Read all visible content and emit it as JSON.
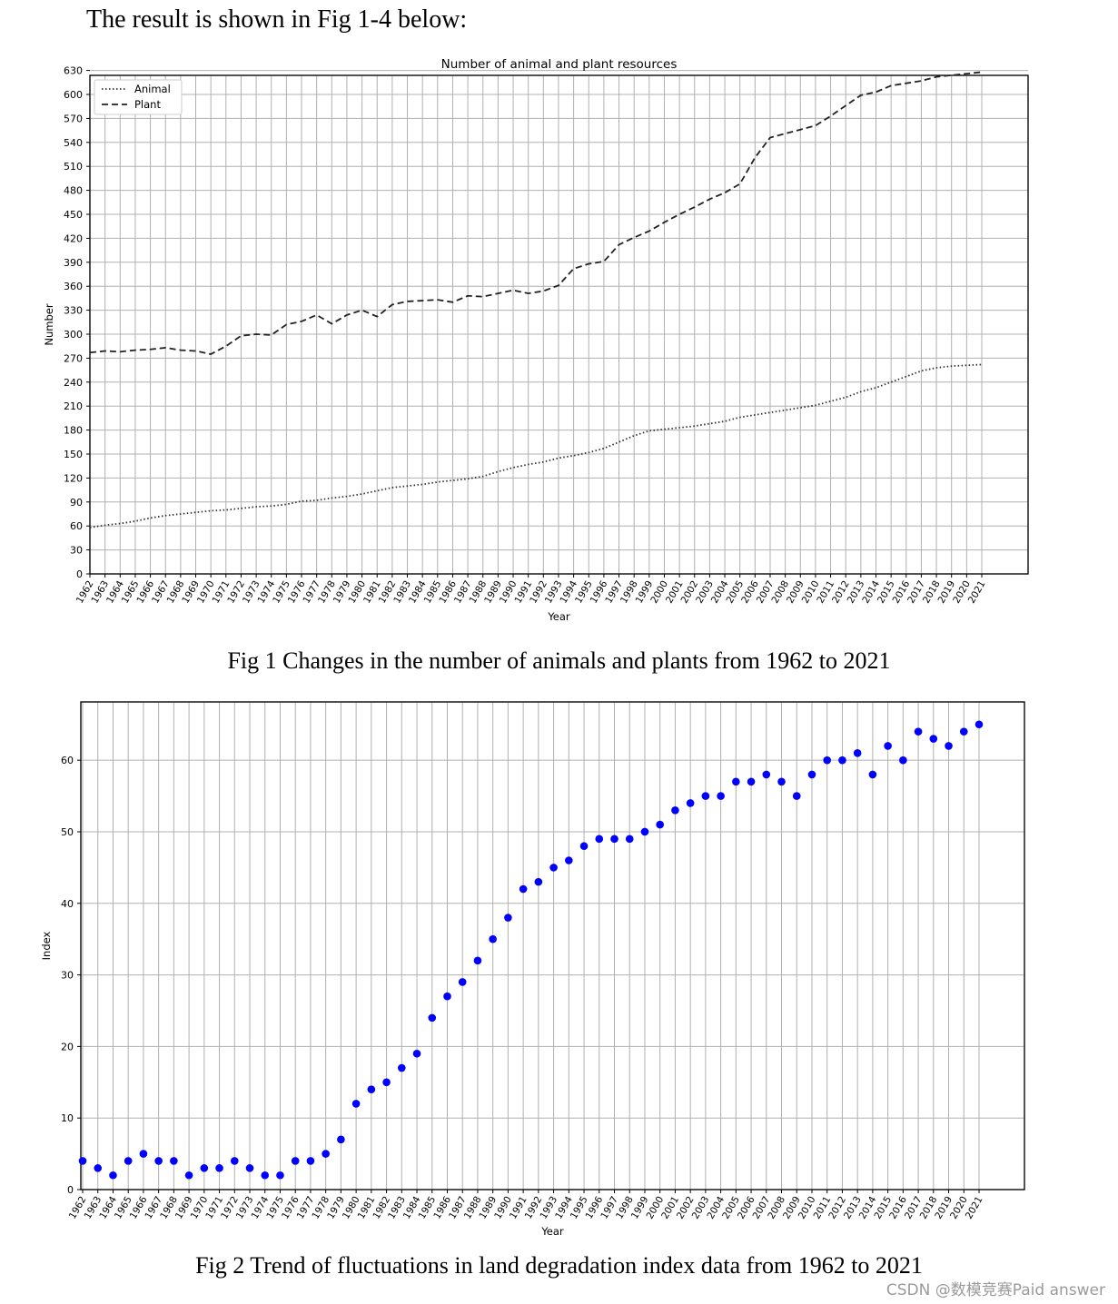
{
  "intro_text": "The result is shown in Fig 1-4 below:",
  "figure1": {
    "caption": "Fig 1 Changes in the number of animals and plants from 1962 to 2021",
    "chart_data": {
      "type": "line",
      "title": "Number of animal and plant resources",
      "xlabel": "Year",
      "ylabel": "Number",
      "ylim": [
        0,
        650
      ],
      "yticks": [
        0,
        30,
        60,
        90,
        120,
        150,
        180,
        210,
        240,
        270,
        300,
        330,
        360,
        390,
        420,
        450,
        480,
        510,
        540,
        570,
        600,
        630
      ],
      "grid": true,
      "legend": "top-left",
      "categories": [
        "1962",
        "1963",
        "1964",
        "1965",
        "1966",
        "1967",
        "1968",
        "1969",
        "1970",
        "1971",
        "1972",
        "1973",
        "1974",
        "1975",
        "1976",
        "1977",
        "1978",
        "1979",
        "1980",
        "1981",
        "1982",
        "1983",
        "1984",
        "1985",
        "1986",
        "1987",
        "1988",
        "1989",
        "1990",
        "1991",
        "1992",
        "1993",
        "1994",
        "1995",
        "1996",
        "1997",
        "1998",
        "1999",
        "2000",
        "2001",
        "2002",
        "2003",
        "2004",
        "2005",
        "2006",
        "2007",
        "2008",
        "2009",
        "2010",
        "2011",
        "2012",
        "2013",
        "2014",
        "2015",
        "2016",
        "2017",
        "2018",
        "2019",
        "2020",
        "2021"
      ],
      "series": [
        {
          "name": "Animal",
          "style": "dotted",
          "color": "#333333",
          "values": [
            58,
            61,
            63,
            66,
            70,
            73,
            75,
            77,
            79,
            80,
            82,
            84,
            85,
            87,
            91,
            92,
            95,
            97,
            100,
            104,
            108,
            110,
            112,
            115,
            117,
            119,
            122,
            128,
            133,
            137,
            140,
            145,
            148,
            152,
            157,
            165,
            173,
            179,
            181,
            183,
            185,
            188,
            191,
            196,
            199,
            202,
            205,
            208,
            211,
            216,
            221,
            228,
            233,
            240,
            247,
            254,
            258,
            260,
            261,
            262
          ]
        },
        {
          "name": "Plant",
          "style": "dashed",
          "color": "#222222",
          "values": [
            277,
            279,
            278,
            280,
            281,
            283,
            280,
            279,
            275,
            285,
            298,
            300,
            299,
            312,
            316,
            324,
            313,
            324,
            330,
            322,
            337,
            341,
            342,
            343,
            340,
            348,
            347,
            351,
            355,
            351,
            354,
            361,
            382,
            388,
            391,
            412,
            421,
            429,
            440,
            450,
            459,
            469,
            477,
            488,
            521,
            546,
            551,
            556,
            561,
            573,
            586,
            599,
            603,
            611,
            614,
            617,
            622,
            624,
            626,
            628
          ]
        }
      ]
    }
  },
  "figure2": {
    "caption": "Fig 2 Trend of fluctuations in land degradation index data from 1962 to 2021",
    "chart_data": {
      "type": "scatter",
      "title": "",
      "xlabel": "Year",
      "ylabel": "Index",
      "ylim": [
        0,
        67
      ],
      "yticks": [
        0,
        10,
        20,
        30,
        40,
        50,
        60
      ],
      "grid": true,
      "categories": [
        "1962",
        "1963",
        "1964",
        "1965",
        "1966",
        "1967",
        "1968",
        "1969",
        "1970",
        "1971",
        "1972",
        "1973",
        "1974",
        "1975",
        "1976",
        "1977",
        "1978",
        "1979",
        "1980",
        "1981",
        "1982",
        "1983",
        "1984",
        "1985",
        "1986",
        "1987",
        "1988",
        "1989",
        "1990",
        "1991",
        "1992",
        "1993",
        "1994",
        "1995",
        "1996",
        "1997",
        "1998",
        "1999",
        "2000",
        "2001",
        "2002",
        "2003",
        "2004",
        "2005",
        "2006",
        "2007",
        "2008",
        "2009",
        "2010",
        "2011",
        "2012",
        "2013",
        "2014",
        "2015",
        "2016",
        "2017",
        "2018",
        "2019",
        "2020",
        "2021"
      ],
      "series": [
        {
          "color": "#0000ff",
          "values": [
            4,
            3,
            2,
            4,
            5,
            4,
            4,
            2,
            3,
            3,
            4,
            3,
            2,
            2,
            4,
            4,
            5,
            7,
            12,
            14,
            15,
            17,
            19,
            24,
            27,
            29,
            32,
            35,
            38,
            42,
            43,
            45,
            46,
            48,
            49,
            49,
            49,
            50,
            51,
            53,
            54,
            55,
            55,
            57,
            57,
            58,
            57,
            55,
            58,
            60,
            60,
            61,
            58,
            62,
            60,
            64,
            63,
            62,
            64,
            65
          ]
        }
      ]
    }
  },
  "watermark": "CSDN @数模竞赛Paid answer"
}
